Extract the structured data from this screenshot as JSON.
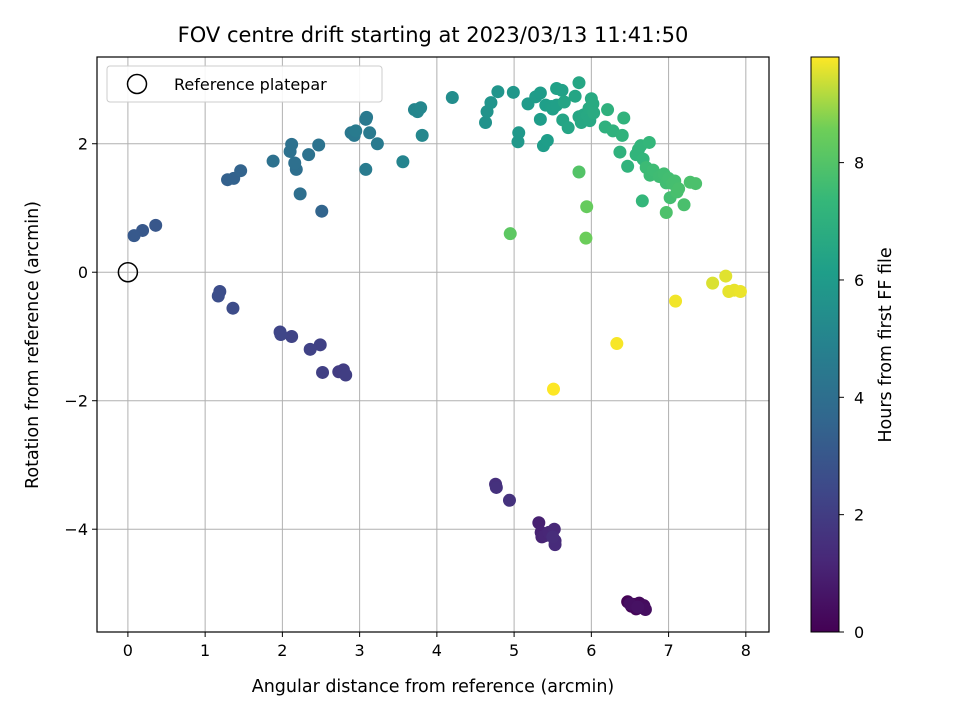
{
  "chart_data": {
    "type": "scatter",
    "title": "FOV centre drift starting at 2023/03/13 11:41:50",
    "xlabel": "Angular distance from reference (arcmin)",
    "ylabel": "Rotation from reference (arcmin)",
    "xlim": [
      -0.4,
      8.3
    ],
    "ylim": [
      -5.6,
      3.35
    ],
    "x_ticks": [
      0,
      1,
      2,
      3,
      4,
      5,
      6,
      7,
      8
    ],
    "y_ticks": [
      -4,
      -2,
      0,
      2
    ],
    "grid": true,
    "legend": {
      "placement": "upper-left",
      "entries": [
        "Reference platepar"
      ]
    },
    "reference_point": {
      "name": "Reference platepar",
      "x": 0,
      "y": 0
    },
    "colorbar": {
      "label": "Hours from first FF file",
      "colormap": "viridis",
      "range": [
        0,
        9.8
      ],
      "ticks": [
        0,
        2,
        4,
        6,
        8
      ]
    },
    "points": [
      [
        6.47,
        -5.13,
        0.05
      ],
      [
        6.52,
        -5.2,
        0.1
      ],
      [
        6.55,
        -5.17,
        0.15
      ],
      [
        6.58,
        -5.24,
        0.2
      ],
      [
        6.62,
        -5.15,
        0.25
      ],
      [
        6.65,
        -5.22,
        0.3
      ],
      [
        6.68,
        -5.19,
        0.35
      ],
      [
        6.7,
        -5.25,
        0.4
      ],
      [
        6.5,
        -5.16,
        0.45
      ],
      [
        6.6,
        -5.21,
        0.5
      ],
      [
        5.32,
        -3.9,
        1.0
      ],
      [
        5.35,
        -4.05,
        1.05
      ],
      [
        5.36,
        -4.12,
        1.1
      ],
      [
        5.4,
        -4.1,
        1.15
      ],
      [
        5.45,
        -4.05,
        1.2
      ],
      [
        5.52,
        -4.0,
        1.25
      ],
      [
        5.53,
        -4.18,
        1.3
      ],
      [
        5.53,
        -4.24,
        1.35
      ],
      [
        5.5,
        -4.12,
        1.4
      ],
      [
        4.76,
        -3.3,
        1.5
      ],
      [
        4.77,
        -3.35,
        1.55
      ],
      [
        4.94,
        -3.55,
        1.6
      ],
      [
        2.73,
        -1.55,
        1.95
      ],
      [
        2.79,
        -1.52,
        2.0
      ],
      [
        2.82,
        -1.6,
        2.05
      ],
      [
        2.52,
        -1.56,
        2.1
      ],
      [
        2.49,
        -1.13,
        2.15
      ],
      [
        2.36,
        -1.2,
        2.2
      ],
      [
        2.12,
        -1.0,
        2.25
      ],
      [
        1.97,
        -0.93,
        2.3
      ],
      [
        1.98,
        -0.97,
        2.35
      ],
      [
        1.36,
        -0.56,
        2.55
      ],
      [
        1.19,
        -0.3,
        2.6
      ],
      [
        1.17,
        -0.37,
        2.65
      ],
      [
        0.36,
        0.73,
        3.0
      ],
      [
        0.19,
        0.65,
        3.05
      ],
      [
        0.08,
        0.57,
        3.1
      ],
      [
        1.29,
        1.44,
        3.4
      ],
      [
        1.37,
        1.46,
        3.45
      ],
      [
        1.46,
        1.58,
        3.5
      ],
      [
        2.51,
        0.95,
        3.55
      ],
      [
        2.23,
        1.22,
        4.0
      ],
      [
        2.18,
        1.6,
        4.02
      ],
      [
        2.16,
        1.7,
        4.05
      ],
      [
        2.1,
        1.88,
        4.08
      ],
      [
        2.12,
        1.99,
        4.1
      ],
      [
        1.88,
        1.73,
        4.12
      ],
      [
        2.34,
        1.83,
        4.15
      ],
      [
        2.47,
        1.98,
        4.18
      ],
      [
        2.89,
        2.17,
        4.4
      ],
      [
        2.93,
        2.13,
        4.42
      ],
      [
        3.08,
        2.38,
        4.45
      ],
      [
        3.09,
        2.41,
        4.48
      ],
      [
        3.13,
        2.17,
        4.5
      ],
      [
        3.23,
        2.0,
        4.52
      ],
      [
        3.08,
        1.6,
        4.55
      ],
      [
        2.95,
        2.2,
        4.58
      ],
      [
        3.56,
        1.72,
        5.0
      ],
      [
        3.71,
        2.53,
        5.05
      ],
      [
        3.75,
        2.5,
        5.08
      ],
      [
        3.79,
        2.56,
        5.1
      ],
      [
        3.81,
        2.13,
        5.12
      ],
      [
        4.2,
        2.72,
        5.4
      ],
      [
        4.63,
        2.33,
        5.6
      ],
      [
        4.65,
        2.5,
        5.65
      ],
      [
        4.7,
        2.64,
        5.7
      ],
      [
        4.79,
        2.81,
        5.75
      ],
      [
        4.99,
        2.8,
        5.8
      ],
      [
        5.05,
        2.03,
        5.85
      ],
      [
        5.06,
        2.17,
        5.88
      ],
      [
        5.18,
        2.62,
        6.0
      ],
      [
        5.28,
        2.73,
        6.02
      ],
      [
        5.34,
        2.79,
        6.05
      ],
      [
        5.34,
        2.38,
        6.08
      ],
      [
        5.38,
        1.97,
        6.1
      ],
      [
        5.43,
        2.05,
        6.12
      ],
      [
        5.41,
        2.6,
        6.15
      ],
      [
        5.48,
        2.58,
        6.18
      ],
      [
        5.5,
        2.54,
        6.2
      ],
      [
        5.55,
        2.6,
        6.22
      ],
      [
        5.55,
        2.86,
        6.25
      ],
      [
        5.62,
        2.83,
        6.28
      ],
      [
        5.65,
        2.65,
        6.4
      ],
      [
        5.63,
        2.37,
        6.42
      ],
      [
        5.7,
        2.25,
        6.45
      ],
      [
        5.79,
        2.74,
        6.48
      ],
      [
        5.84,
        2.95,
        6.5
      ],
      [
        5.84,
        2.42,
        6.52
      ],
      [
        5.87,
        2.33,
        6.55
      ],
      [
        5.9,
        2.45,
        6.58
      ],
      [
        5.95,
        2.44,
        6.6
      ],
      [
        5.98,
        2.36,
        6.62
      ],
      [
        5.97,
        2.55,
        6.65
      ],
      [
        6.0,
        2.7,
        6.68
      ],
      [
        6.02,
        2.62,
        6.7
      ],
      [
        6.03,
        2.48,
        6.72
      ],
      [
        6.18,
        2.26,
        7.0
      ],
      [
        6.21,
        2.53,
        7.02
      ],
      [
        6.28,
        2.2,
        7.05
      ],
      [
        6.37,
        1.87,
        7.08
      ],
      [
        6.4,
        2.13,
        7.1
      ],
      [
        6.42,
        2.4,
        7.12
      ],
      [
        6.47,
        1.65,
        7.15
      ],
      [
        6.58,
        1.83,
        7.18
      ],
      [
        6.61,
        1.91,
        7.2
      ],
      [
        6.64,
        1.97,
        7.22
      ],
      [
        6.67,
        1.76,
        7.25
      ],
      [
        6.75,
        2.02,
        7.28
      ],
      [
        6.66,
        1.11,
        7.3
      ],
      [
        6.71,
        1.63,
        7.5
      ],
      [
        6.76,
        1.51,
        7.52
      ],
      [
        6.8,
        1.59,
        7.55
      ],
      [
        6.88,
        1.49,
        7.58
      ],
      [
        6.94,
        1.53,
        7.6
      ],
      [
        6.97,
        1.39,
        7.62
      ],
      [
        7.0,
        1.46,
        7.65
      ],
      [
        7.02,
        1.16,
        7.68
      ],
      [
        7.05,
        1.38,
        7.7
      ],
      [
        7.08,
        1.42,
        7.72
      ],
      [
        7.11,
        1.25,
        7.75
      ],
      [
        7.13,
        1.3,
        7.78
      ],
      [
        7.2,
        1.05,
        7.8
      ],
      [
        7.28,
        1.4,
        7.82
      ],
      [
        7.35,
        1.38,
        7.85
      ],
      [
        6.97,
        0.93,
        7.88
      ],
      [
        5.84,
        1.56,
        8.0
      ],
      [
        4.95,
        0.6,
        8.2
      ],
      [
        5.94,
        1.02,
        8.4
      ],
      [
        5.93,
        0.53,
        8.5
      ],
      [
        7.57,
        -0.17,
        9.5
      ],
      [
        7.74,
        -0.06,
        9.55
      ],
      [
        7.78,
        -0.3,
        9.6
      ],
      [
        7.85,
        -0.28,
        9.62
      ],
      [
        7.93,
        -0.3,
        9.65
      ],
      [
        7.09,
        -0.45,
        9.7
      ],
      [
        6.33,
        -1.11,
        9.75
      ],
      [
        5.51,
        -1.82,
        9.8
      ]
    ]
  }
}
